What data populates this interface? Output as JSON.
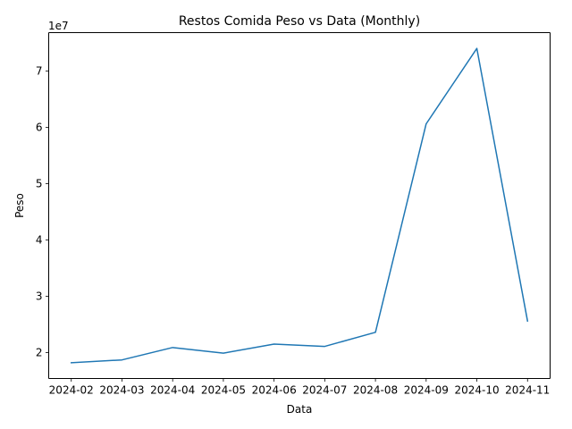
{
  "chart_data": {
    "type": "line",
    "title": "Restos Comida Peso vs Data (Monthly)",
    "xlabel": "Data",
    "ylabel": "Peso",
    "y_offset_text": "1e7",
    "y_scale_factor": 10000000,
    "categories": [
      "2024-02",
      "2024-03",
      "2024-04",
      "2024-05",
      "2024-06",
      "2024-07",
      "2024-08",
      "2024-09",
      "2024-10",
      "2024-11"
    ],
    "series": [
      {
        "color": "#1f77b4",
        "values": [
          18200000,
          18700000,
          20900000,
          19900000,
          21500000,
          21100000,
          23600000,
          60600000,
          74000000,
          25600000
        ]
      }
    ],
    "ylim": [
      15400000,
      76800000
    ],
    "yticks": [
      20000000,
      30000000,
      40000000,
      50000000,
      60000000,
      70000000
    ],
    "ytick_labels": [
      "2",
      "3",
      "4",
      "5",
      "6",
      "7"
    ],
    "grid": false,
    "legend": "none"
  }
}
